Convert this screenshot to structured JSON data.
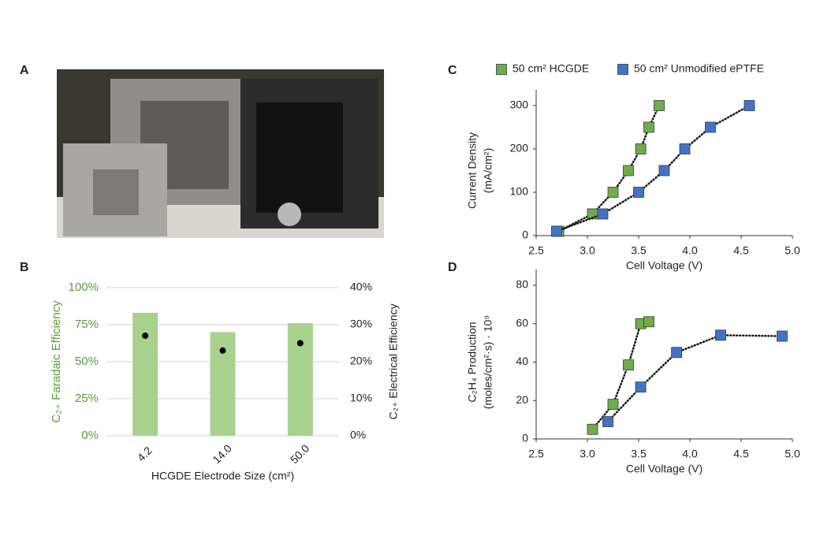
{
  "photo": {
    "label": "A"
  },
  "chart_data": [
    {
      "type": "bar",
      "panel": "B",
      "xlabel": "HCGDE Electrode Size (cm²)",
      "ylabel": "C₂₊ Faradaic Efficiency",
      "y2label": "C₂₊ Electrical Efficiency",
      "categories": [
        "4.2",
        "14.0",
        "50.0"
      ],
      "xtick_rotation": -45,
      "grid": true,
      "ylim": [
        0,
        100
      ],
      "yticks": [
        {
          "value": 0,
          "label": "0%"
        },
        {
          "value": 25,
          "label": "25%"
        },
        {
          "value": 50,
          "label": "50%"
        },
        {
          "value": 75,
          "label": "75%"
        },
        {
          "value": 100,
          "label": "100%"
        }
      ],
      "ycolor": "#5b9a3a",
      "y2lim": [
        0,
        40
      ],
      "y2ticks": [
        {
          "value": 0,
          "label": "0%"
        },
        {
          "value": 10,
          "label": "10%"
        },
        {
          "value": 20,
          "label": "20%"
        },
        {
          "value": 30,
          "label": "30%"
        },
        {
          "value": 40,
          "label": "40%"
        }
      ],
      "series": [
        {
          "color": "#a9d18e",
          "values": [
            83,
            70,
            76
          ]
        },
        {
          "color": "#000000",
          "axis": "y2",
          "type": "scatter",
          "values": [
            27,
            23,
            25
          ]
        }
      ]
    },
    {
      "type": "scatter",
      "panel": "C",
      "xlabel": "Cell Voltage (V)",
      "ylabel": [
        "Current Density",
        "(mA/cm²)"
      ],
      "legend": "top",
      "trendline": true,
      "xlim": [
        2.5,
        5.0
      ],
      "xticks": [
        {
          "value": 2.5,
          "label": "2.5"
        },
        {
          "value": 3,
          "label": "3.0"
        },
        {
          "value": 3.5,
          "label": "3.5"
        },
        {
          "value": 4,
          "label": "4.0"
        },
        {
          "value": 4.5,
          "label": "4.5"
        },
        {
          "value": 5,
          "label": "5.0"
        }
      ],
      "ylim": [
        0,
        300
      ],
      "yticks": [
        0,
        100,
        200,
        300
      ],
      "series": [
        {
          "name": "50 cm² HCGDE",
          "color": "#70ad47",
          "x": [
            2.72,
            3.05,
            3.25,
            3.4,
            3.52,
            3.6,
            3.7
          ],
          "values": [
            10,
            50,
            100,
            150,
            200,
            250,
            300
          ]
        },
        {
          "name": "50 cm² Unmodified ePTFE",
          "color": "#4472c4",
          "x": [
            2.7,
            3.15,
            3.5,
            3.75,
            3.95,
            4.2,
            4.58
          ],
          "values": [
            10,
            50,
            100,
            150,
            200,
            250,
            300
          ]
        }
      ]
    },
    {
      "type": "scatter",
      "panel": "D",
      "xlabel": "Cell Voltage (V)",
      "ylabel": [
        "C₂H₄ Production",
        "(moles/cm²·s) · 10⁹"
      ],
      "trendline": true,
      "xlim": [
        2.5,
        5.0
      ],
      "xticks": [
        {
          "value": 2.5,
          "label": "2.5"
        },
        {
          "value": 3,
          "label": "3.0"
        },
        {
          "value": 3.5,
          "label": "3.5"
        },
        {
          "value": 4,
          "label": "4.0"
        },
        {
          "value": 4.5,
          "label": "4.5"
        },
        {
          "value": 5,
          "label": "5.0"
        }
      ],
      "ylim": [
        0,
        80
      ],
      "yticks": [
        0,
        20,
        40,
        60,
        80
      ],
      "series": [
        {
          "color": "#70ad47",
          "x": [
            3.05,
            3.25,
            3.4,
            3.52,
            3.6
          ],
          "values": [
            5,
            18,
            38.5,
            60,
            61
          ]
        },
        {
          "color": "#4472c4",
          "x": [
            3.2,
            3.52,
            3.87,
            4.3,
            4.9
          ],
          "values": [
            9,
            27,
            45,
            54,
            53.5
          ]
        }
      ]
    }
  ]
}
